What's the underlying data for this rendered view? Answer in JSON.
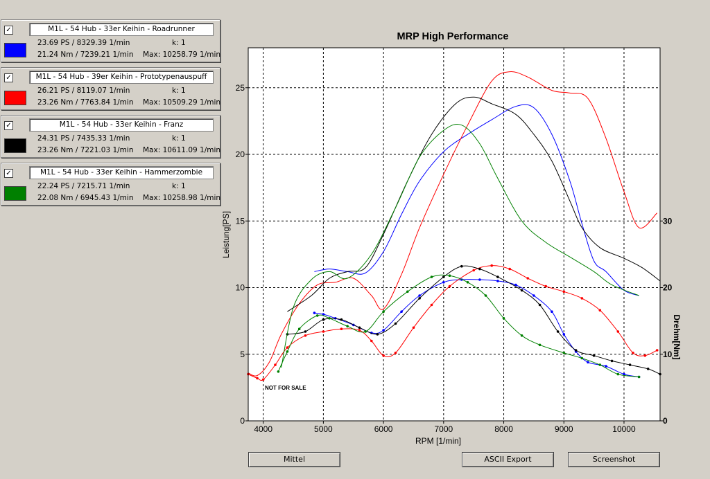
{
  "runs": [
    {
      "checked": "✓",
      "name": "M1L - 54 Hub - 33er Keihin - Roadrunner",
      "color": "#0000ff",
      "power": "23.69 PS / 8329.39 1/min",
      "torque": "21.24 Nm / 7239.21 1/min",
      "k": "k: 1",
      "max": "Max: 10258.79 1/min"
    },
    {
      "checked": "✓",
      "name": "M1L - 54 Hub - 39er Keihin - Prototypenauspuff",
      "color": "#ff0000",
      "power": "26.21 PS / 8119.07 1/min",
      "torque": "23.26 Nm / 7763.84 1/min",
      "k": "k: 1",
      "max": "Max: 10509.29 1/min"
    },
    {
      "checked": "✓",
      "name": "M1L - 54 Hub - 33er Keihin - Franz",
      "color": "#000000",
      "power": "24.31 PS / 7435.33 1/min",
      "torque": "23.26 Nm / 7221.03 1/min",
      "k": "k: 1",
      "max": "Max: 10611.09 1/min"
    },
    {
      "checked": "✓",
      "name": "M1L - 54 Hub - 33er Keihin - Hammerzombie",
      "color": "#008000",
      "power": "22.24 PS / 7215.71 1/min",
      "torque": "22.08 Nm / 6945.43 1/min",
      "k": "k: 1",
      "max": "Max: 10258.98 1/min"
    }
  ],
  "buttons": {
    "mittel": "Mittel",
    "ascii": "ASCII Export",
    "screenshot": "Screenshot"
  },
  "watermark": "NOT FOR SALE",
  "chart_data": {
    "type": "line",
    "title": "MRP High Performance",
    "xlabel": "RPM [1/min]",
    "ylabel": "Leistung[PS]",
    "y2label": "Drehm[Nm]",
    "xlim": [
      3750,
      10600
    ],
    "ylim": [
      0,
      28
    ],
    "y2lim": [
      0,
      56
    ],
    "xticks": [
      "4000",
      "5000",
      "6000",
      "7000",
      "8000",
      "9000",
      "10000"
    ],
    "yticks": [
      "0",
      "5",
      "10",
      "15",
      "20",
      "25"
    ],
    "y2ticks": [
      "0",
      "10",
      "20",
      "30"
    ],
    "grid": true,
    "series": [
      {
        "name": "M1L - 54 Hub - 33er Keihin - Roadrunner",
        "color": "#0000ff",
        "power": [
          [
            4850,
            11.2
          ],
          [
            5100,
            11.4
          ],
          [
            5400,
            11.2
          ],
          [
            5700,
            11.1
          ],
          [
            6000,
            12.7
          ],
          [
            6300,
            15.5
          ],
          [
            6600,
            18.0
          ],
          [
            7000,
            20.2
          ],
          [
            7400,
            21.5
          ],
          [
            7800,
            22.6
          ],
          [
            8200,
            23.6
          ],
          [
            8500,
            23.5
          ],
          [
            8800,
            21.5
          ],
          [
            9100,
            18.0
          ],
          [
            9300,
            14.8
          ],
          [
            9500,
            12.0
          ],
          [
            9700,
            11.2
          ],
          [
            10000,
            9.8
          ],
          [
            10250,
            9.4
          ]
        ],
        "torque": [
          [
            4850,
            16.2
          ],
          [
            5000,
            16.0
          ],
          [
            5200,
            15.4
          ],
          [
            5500,
            14.4
          ],
          [
            5800,
            13.2
          ],
          [
            6000,
            13.6
          ],
          [
            6300,
            16.4
          ],
          [
            6600,
            18.8
          ],
          [
            7000,
            20.8
          ],
          [
            7300,
            21.2
          ],
          [
            7600,
            21.2
          ],
          [
            7900,
            21.0
          ],
          [
            8200,
            20.4
          ],
          [
            8500,
            18.8
          ],
          [
            8800,
            16.4
          ],
          [
            9000,
            13.0
          ],
          [
            9200,
            10.4
          ],
          [
            9400,
            8.8
          ],
          [
            9700,
            8.2
          ],
          [
            10000,
            7.0
          ],
          [
            10250,
            6.6
          ]
        ]
      },
      {
        "name": "M1L - 54 Hub - 39er Keihin - Prototypenauspuff",
        "color": "#ff0000",
        "power": [
          [
            3750,
            3.6
          ],
          [
            3900,
            3.4
          ],
          [
            4100,
            4.4
          ],
          [
            4300,
            6.5
          ],
          [
            4600,
            8.8
          ],
          [
            4900,
            10.2
          ],
          [
            5200,
            10.4
          ],
          [
            5500,
            10.7
          ],
          [
            5800,
            9.4
          ],
          [
            6000,
            8.4
          ],
          [
            6300,
            11.0
          ],
          [
            6600,
            14.5
          ],
          [
            7000,
            18.5
          ],
          [
            7400,
            22.2
          ],
          [
            7800,
            25.5
          ],
          [
            8100,
            26.2
          ],
          [
            8400,
            25.8
          ],
          [
            8800,
            24.8
          ],
          [
            9100,
            24.6
          ],
          [
            9400,
            24.2
          ],
          [
            9700,
            21.2
          ],
          [
            10000,
            17.2
          ],
          [
            10250,
            14.5
          ],
          [
            10550,
            15.6
          ]
        ],
        "torque": [
          [
            3750,
            7.0
          ],
          [
            3900,
            6.4
          ],
          [
            4000,
            6.2
          ],
          [
            4200,
            8.4
          ],
          [
            4400,
            11.0
          ],
          [
            4700,
            12.8
          ],
          [
            5000,
            13.4
          ],
          [
            5300,
            13.8
          ],
          [
            5600,
            13.6
          ],
          [
            5800,
            12.0
          ],
          [
            6000,
            9.8
          ],
          [
            6200,
            10.2
          ],
          [
            6500,
            14.0
          ],
          [
            6800,
            17.4
          ],
          [
            7100,
            20.2
          ],
          [
            7500,
            22.6
          ],
          [
            7800,
            23.3
          ],
          [
            8100,
            22.8
          ],
          [
            8400,
            21.4
          ],
          [
            8700,
            20.2
          ],
          [
            9000,
            19.4
          ],
          [
            9300,
            18.4
          ],
          [
            9600,
            16.6
          ],
          [
            9900,
            13.4
          ],
          [
            10150,
            10.2
          ],
          [
            10350,
            9.8
          ],
          [
            10550,
            10.6
          ]
        ]
      },
      {
        "name": "M1L - 54 Hub - 33er Keihin - Franz",
        "color": "#000000",
        "power": [
          [
            4400,
            8.2
          ],
          [
            4800,
            9.4
          ],
          [
            5100,
            10.7
          ],
          [
            5400,
            11.2
          ],
          [
            5700,
            11.5
          ],
          [
            6000,
            14.0
          ],
          [
            6400,
            18.0
          ],
          [
            6800,
            21.5
          ],
          [
            7200,
            23.8
          ],
          [
            7500,
            24.3
          ],
          [
            7800,
            23.8
          ],
          [
            8200,
            23.0
          ],
          [
            8500,
            21.5
          ],
          [
            8800,
            19.5
          ],
          [
            9100,
            16.5
          ],
          [
            9300,
            14.5
          ],
          [
            9600,
            13.0
          ],
          [
            10000,
            12.2
          ],
          [
            10300,
            11.5
          ],
          [
            10600,
            10.5
          ]
        ],
        "torque": [
          [
            4400,
            13.0
          ],
          [
            4700,
            13.4
          ],
          [
            5000,
            15.2
          ],
          [
            5300,
            15.2
          ],
          [
            5600,
            14.0
          ],
          [
            5900,
            13.0
          ],
          [
            6200,
            14.6
          ],
          [
            6600,
            18.4
          ],
          [
            7000,
            21.6
          ],
          [
            7300,
            23.2
          ],
          [
            7600,
            22.8
          ],
          [
            7900,
            21.6
          ],
          [
            8300,
            19.6
          ],
          [
            8600,
            17.4
          ],
          [
            8900,
            13.4
          ],
          [
            9200,
            10.6
          ],
          [
            9500,
            9.8
          ],
          [
            9800,
            9.0
          ],
          [
            10100,
            8.4
          ],
          [
            10400,
            7.8
          ],
          [
            10600,
            7.0
          ]
        ]
      },
      {
        "name": "M1L - 54 Hub - 33er Keihin - Hammerzombie",
        "color": "#008000",
        "power": [
          [
            4300,
            4.0
          ],
          [
            4500,
            8.5
          ],
          [
            4800,
            10.6
          ],
          [
            5100,
            11.2
          ],
          [
            5400,
            10.7
          ],
          [
            5800,
            12.5
          ],
          [
            6200,
            16.0
          ],
          [
            6600,
            19.8
          ],
          [
            7000,
            21.8
          ],
          [
            7300,
            22.2
          ],
          [
            7600,
            20.8
          ],
          [
            7900,
            18.2
          ],
          [
            8300,
            15.0
          ],
          [
            8700,
            13.4
          ],
          [
            9100,
            12.3
          ],
          [
            9500,
            11.2
          ],
          [
            9800,
            10.2
          ],
          [
            10250,
            9.4
          ]
        ],
        "torque": [
          [
            4250,
            7.4
          ],
          [
            4400,
            10.4
          ],
          [
            4600,
            13.8
          ],
          [
            4900,
            15.8
          ],
          [
            5100,
            15.4
          ],
          [
            5400,
            14.2
          ],
          [
            5700,
            13.4
          ],
          [
            6000,
            16.4
          ],
          [
            6400,
            19.4
          ],
          [
            6800,
            21.6
          ],
          [
            7100,
            21.8
          ],
          [
            7400,
            20.8
          ],
          [
            7700,
            18.8
          ],
          [
            8000,
            15.4
          ],
          [
            8300,
            12.8
          ],
          [
            8600,
            11.4
          ],
          [
            9000,
            10.2
          ],
          [
            9300,
            9.4
          ],
          [
            9600,
            8.4
          ],
          [
            9900,
            7.0
          ],
          [
            10250,
            6.6
          ]
        ]
      }
    ]
  }
}
